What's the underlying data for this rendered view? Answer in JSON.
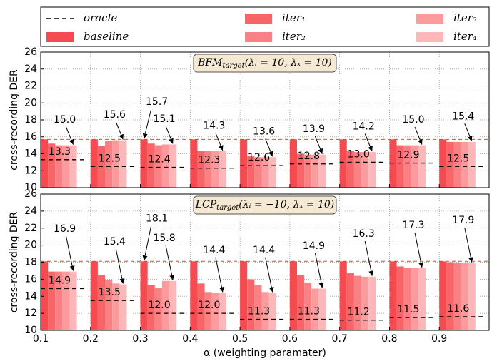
{
  "chart_data": [
    {
      "type": "bar",
      "title": "BFM",
      "title_subscript": "target",
      "title_params": "(λᵢ = 10, λₓ = 10)",
      "ylabel": "cross-recording DER",
      "x": [
        0.1,
        0.2,
        0.3,
        0.4,
        0.5,
        0.6,
        0.7,
        0.8,
        0.9
      ],
      "xlim": [
        0.1,
        1.0
      ],
      "xticks": [
        0.1,
        0.2,
        0.3,
        0.4,
        0.5,
        0.6,
        0.7,
        0.8,
        0.9
      ],
      "ylim": [
        10,
        26
      ],
      "yticks": [
        10,
        12,
        14,
        16,
        18,
        20,
        22,
        24,
        26
      ],
      "grid": true,
      "series": [
        {
          "name": "oracle",
          "color": "#000000",
          "line_style": "dashed",
          "values": [
            13.3,
            12.5,
            12.4,
            12.3,
            12.6,
            12.8,
            13.0,
            12.9,
            12.5
          ],
          "value_labels": [
            "13.3",
            "12.5",
            "12.4",
            "12.3",
            "12.6",
            "12.8",
            "13.0",
            "12.9",
            "12.5"
          ]
        },
        {
          "name": "baseline",
          "color": "#f54b50",
          "values": [
            15.7,
            15.7,
            15.7,
            15.7,
            15.7,
            15.7,
            15.7,
            15.7,
            15.7
          ],
          "value_labels": [
            null,
            null,
            "15.7",
            null,
            null,
            null,
            null,
            null,
            null
          ]
        },
        {
          "name": "iter₁",
          "color": "#f76568",
          "values": [
            15.2,
            14.9,
            15.2,
            14.3,
            13.7,
            14.0,
            14.3,
            15.0,
            15.4
          ]
        },
        {
          "name": "iter₂",
          "color": "#f98184",
          "values": [
            15.0,
            15.5,
            15.0,
            14.3,
            13.6,
            13.9,
            14.2,
            15.0,
            15.4
          ]
        },
        {
          "name": "iter₃",
          "color": "#fb9b9d",
          "values": [
            15.0,
            15.6,
            15.1,
            14.3,
            13.6,
            13.9,
            14.2,
            15.0,
            15.4
          ]
        },
        {
          "name": "iter₄",
          "color": "#fdb7b8",
          "values": [
            15.0,
            15.6,
            15.1,
            14.3,
            13.6,
            13.9,
            14.2,
            15.0,
            15.4
          ],
          "value_labels": [
            "15.0",
            "15.6",
            "15.1",
            "14.3",
            "13.6",
            "13.9",
            "14.2",
            "15.0",
            "15.4"
          ]
        }
      ]
    },
    {
      "type": "bar",
      "title": "LCP",
      "title_subscript": "target",
      "title_params": "(λᵢ = −10, λₓ = 10)",
      "ylabel": "cross-recording DER",
      "xlabel": "α (weighting paramater)",
      "x": [
        0.1,
        0.2,
        0.3,
        0.4,
        0.5,
        0.6,
        0.7,
        0.8,
        0.9
      ],
      "xlim": [
        0.1,
        1.0
      ],
      "xticks": [
        0.1,
        0.2,
        0.3,
        0.4,
        0.5,
        0.6,
        0.7,
        0.8,
        0.9
      ],
      "ylim": [
        10,
        26
      ],
      "yticks": [
        10,
        12,
        14,
        16,
        18,
        20,
        22,
        24,
        26
      ],
      "grid": true,
      "series": [
        {
          "values": [
            14.9,
            13.5,
            12.0,
            12.0,
            11.3,
            11.3,
            11.2,
            11.5,
            11.6
          ],
          "value_labels": [
            "14.9",
            "13.5",
            "12.0",
            "12.0",
            "11.3",
            "11.3",
            "11.2",
            "11.5",
            "11.6"
          ]
        },
        {
          "values": [
            18.1,
            18.1,
            18.1,
            18.1,
            18.1,
            18.1,
            18.1,
            18.1,
            18.1
          ],
          "value_labels": [
            null,
            null,
            "18.1",
            null,
            null,
            null,
            null,
            null,
            null
          ]
        },
        {
          "values": [
            16.9,
            16.5,
            15.3,
            15.5,
            16.0,
            16.5,
            16.7,
            17.5,
            18.0
          ]
        },
        {
          "values": [
            16.9,
            15.9,
            15.0,
            14.5,
            15.3,
            15.6,
            16.4,
            17.3,
            17.9
          ]
        },
        {
          "values": [
            16.9,
            15.5,
            15.8,
            14.4,
            14.5,
            14.9,
            16.3,
            17.3,
            17.9
          ]
        },
        {
          "values": [
            16.9,
            15.4,
            15.8,
            14.4,
            14.4,
            14.9,
            16.3,
            17.3,
            17.9
          ],
          "value_labels": [
            "16.9",
            "15.4",
            "15.8",
            "14.4",
            "14.4",
            "14.9",
            "16.3",
            "17.3",
            "17.9"
          ]
        }
      ]
    }
  ]
}
